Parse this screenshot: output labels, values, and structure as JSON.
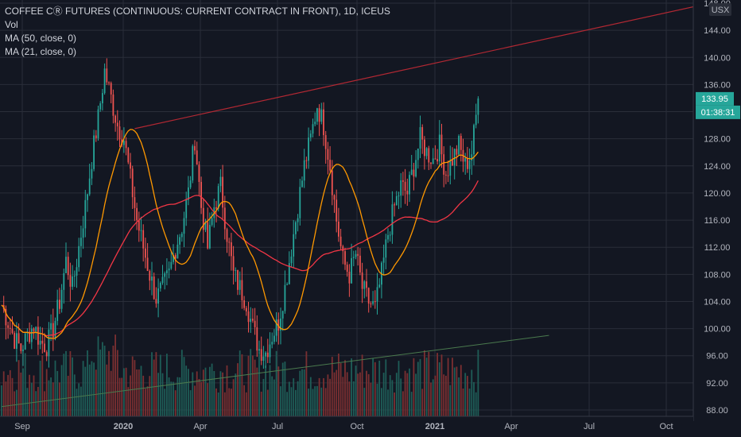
{
  "legend": {
    "title": "COFFEE CⓇ FUTURES (CONTINUOUS: CURRENT CONTRACT IN FRONT), 1D, ICEUS",
    "vol": "Vol",
    "ma50": "MA (50, close, 0)",
    "ma21": "MA (21, close, 0)"
  },
  "currency": "USX",
  "price_badge": {
    "value": "133.95",
    "color": "#26a69a"
  },
  "timer_badge": {
    "value": "01:38:31",
    "color": "#26a69a"
  },
  "colors": {
    "background": "#131722",
    "grid": "#2a2e39",
    "up": "#26a69a",
    "down": "#ef5350",
    "ma50": "#f23645",
    "ma21": "#ff9800",
    "trend_upper": "#b22833",
    "trend_lower": "#4a7a4e"
  },
  "chart_data": {
    "type": "candlestick",
    "title": "COFFEE CⓇ FUTURES (CONTINUOUS: CURRENT CONTRACT IN FRONT), 1D, ICEUS",
    "x_ticks": [
      "Sep",
      "2020",
      "Apr",
      "Jul",
      "Oct",
      "2021",
      "Apr",
      "Jul",
      "Oct"
    ],
    "y_ticks": [
      "88.00",
      "92.00",
      "96.00",
      "100.00",
      "104.00",
      "108.00",
      "112.00",
      "116.00",
      "120.00",
      "124.00",
      "128.00",
      "132.00",
      "136.00",
      "140.00",
      "144.00",
      "148.00"
    ],
    "ylim": [
      87,
      149
    ],
    "price_close_path": [
      [
        0,
        103.5
      ],
      [
        3,
        101.0
      ],
      [
        6,
        98.5
      ],
      [
        9,
        97.0
      ],
      [
        12,
        99.0
      ],
      [
        15,
        100.5
      ],
      [
        18,
        98.0
      ],
      [
        21,
        97.5
      ],
      [
        24,
        100.0
      ],
      [
        27,
        104.0
      ],
      [
        30,
        110.0
      ],
      [
        33,
        106.0
      ],
      [
        36,
        112.0
      ],
      [
        39,
        118.0
      ],
      [
        42,
        125.0
      ],
      [
        45,
        131.0
      ],
      [
        48,
        138.0
      ],
      [
        51,
        134.0
      ],
      [
        54,
        130.0
      ],
      [
        57,
        128.0
      ],
      [
        60,
        122.0
      ],
      [
        63,
        116.0
      ],
      [
        66,
        112.0
      ],
      [
        69,
        108.0
      ],
      [
        72,
        104.5
      ],
      [
        75,
        106.0
      ],
      [
        78,
        108.0
      ],
      [
        81,
        112.0
      ],
      [
        84,
        115.0
      ],
      [
        87,
        120.0
      ],
      [
        90,
        128.0
      ],
      [
        93,
        118.0
      ],
      [
        96,
        112.0
      ],
      [
        99,
        118.0
      ],
      [
        102,
        121.0
      ],
      [
        105,
        114.0
      ],
      [
        108,
        108.0
      ],
      [
        111,
        106.0
      ],
      [
        114,
        104.0
      ],
      [
        117,
        100.0
      ],
      [
        120,
        97.0
      ],
      [
        123,
        96.5
      ],
      [
        126,
        99.0
      ],
      [
        129,
        101.0
      ],
      [
        132,
        106.0
      ],
      [
        135,
        112.0
      ],
      [
        138,
        118.0
      ],
      [
        141,
        124.0
      ],
      [
        144,
        128.0
      ],
      [
        147,
        133.0
      ],
      [
        150,
        130.0
      ],
      [
        153,
        124.0
      ],
      [
        156,
        116.0
      ],
      [
        159,
        110.0
      ],
      [
        162,
        108.0
      ],
      [
        165,
        111.0
      ],
      [
        168,
        106.0
      ],
      [
        171,
        104.0
      ],
      [
        174,
        103.0
      ],
      [
        177,
        108.0
      ],
      [
        180,
        114.0
      ],
      [
        183,
        118.0
      ],
      [
        186,
        121.0
      ],
      [
        189,
        120.0
      ],
      [
        192,
        124.0
      ],
      [
        195,
        128.0
      ],
      [
        198,
        126.0
      ],
      [
        201,
        125.0
      ],
      [
        204,
        127.0
      ],
      [
        207,
        123.0
      ],
      [
        210,
        125.0
      ],
      [
        213,
        127.0
      ],
      [
        216,
        124.0
      ],
      [
        219,
        126.0
      ],
      [
        222,
        133.95
      ]
    ],
    "series": [
      {
        "name": "MA (50, close, 0)",
        "color": "#f23645"
      },
      {
        "name": "MA (21, close, 0)",
        "color": "#ff9800"
      }
    ],
    "trendlines": [
      {
        "from": [
          62,
          129.5
        ],
        "to": [
          330,
          148.0
        ]
      },
      {
        "from": [
          0,
          88.5
        ],
        "to": [
          255,
          99.0
        ]
      }
    ],
    "last_price": 133.95
  }
}
